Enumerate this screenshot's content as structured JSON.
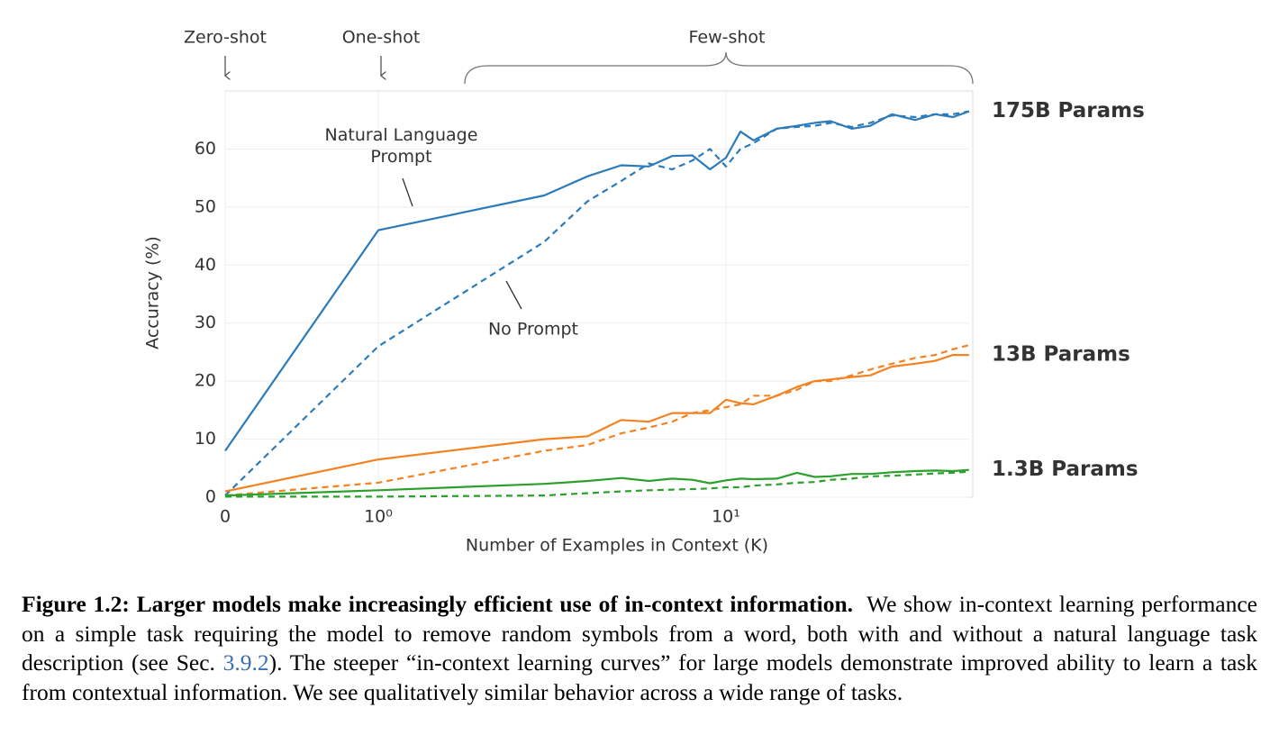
{
  "chart_data": {
    "type": "line",
    "xscale": "symlog",
    "x_label": "Number of Examples in Context  (K)",
    "y_label": "Accuracy (%)",
    "x": [
      0,
      1,
      3,
      4,
      5,
      6,
      7,
      8,
      9,
      10,
      11,
      12,
      14,
      16,
      18,
      20,
      23,
      26,
      30,
      35,
      40,
      45,
      50
    ],
    "xlim": [
      0,
      50
    ],
    "xticks": [
      0,
      {
        "value": 1,
        "label": "10⁰"
      },
      {
        "value": 10,
        "label": "10¹"
      }
    ],
    "ylim": [
      0,
      70
    ],
    "yticks": [
      0,
      10,
      20,
      30,
      40,
      50,
      60
    ],
    "grid": true,
    "series": [
      {
        "name": "175B Params",
        "color": "#2b7bba",
        "values": [
          8,
          46,
          52,
          55.3,
          57.2,
          57,
          58.8,
          58.9,
          56.5,
          58.5,
          63,
          61.5,
          63.5,
          64,
          64.5,
          64.8,
          63.5,
          64,
          66,
          65,
          66,
          65.5,
          66.5
        ],
        "no_prompt_values": [
          0.3,
          26,
          44,
          51,
          54.5,
          57.5,
          56.5,
          58,
          60,
          57,
          60,
          61,
          63.5,
          63.8,
          64,
          64.5,
          63.8,
          64.5,
          65.8,
          65.5,
          66,
          66,
          66.5
        ]
      },
      {
        "name": "13B Params",
        "color": "#f58220",
        "values": [
          1,
          6.5,
          10,
          10.5,
          13.3,
          13,
          14.5,
          14.5,
          14.5,
          16.8,
          16.2,
          16,
          17.5,
          19,
          20,
          20.3,
          20.7,
          21,
          22.5,
          23,
          23.5,
          24.5,
          24.5
        ],
        "no_prompt_values": [
          0.3,
          2.5,
          8,
          9,
          11,
          12,
          13,
          14.5,
          15,
          15.5,
          16,
          17.5,
          17.5,
          18.5,
          20,
          20,
          21,
          22,
          23,
          24,
          24.5,
          25.5,
          26.2
        ]
      },
      {
        "name": "1.3B Params",
        "color": "#2ca02c",
        "values": [
          0.3,
          1.2,
          2.3,
          2.8,
          3.3,
          2.8,
          3.2,
          3,
          2.4,
          2.9,
          3.2,
          3.1,
          3.2,
          4.2,
          3.5,
          3.6,
          4,
          4,
          4.3,
          4.5,
          4.6,
          4.5,
          4.7
        ],
        "no_prompt_values": [
          0.1,
          0.1,
          0.3,
          0.7,
          1,
          1.2,
          1.3,
          1.4,
          1.5,
          1.7,
          1.7,
          2,
          2.2,
          2.5,
          2.6,
          3,
          3.2,
          3.6,
          3.7,
          3.9,
          4.1,
          4.2,
          4.4
        ]
      }
    ],
    "annotations": {
      "zero_shot": "Zero-shot",
      "one_shot": "One-shot",
      "few_shot": "Few-shot",
      "prompt": "Natural Language Prompt",
      "no_prompt": "No Prompt"
    }
  },
  "caption": {
    "label": "Figure 1.2:",
    "title": "Larger models make increasingly efficient use of in-context information.",
    "text_before": "We show in-context learning performance on a simple task requiring the model to remove random symbols from a word, both with and without a natural language task description (see Sec. ",
    "ref": "3.9.2",
    "text_after": "). The steeper “in-context learning curves” for large models demonstrate improved ability to learn a task from contextual information. We see qualitatively similar behavior across a wide range of tasks."
  }
}
